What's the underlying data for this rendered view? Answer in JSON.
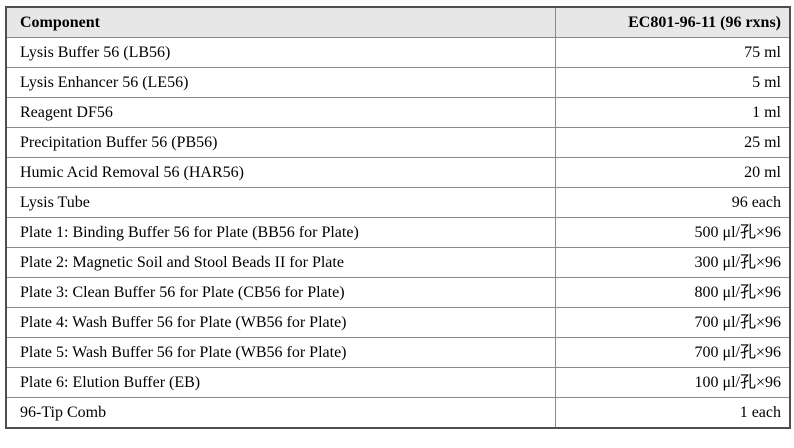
{
  "table": {
    "columns": [
      {
        "label": "Component"
      },
      {
        "label": "EC801-96-11 (96 rxns)"
      }
    ],
    "rows": [
      {
        "component": "Lysis Buffer 56 (LB56)",
        "amount": "75 ml"
      },
      {
        "component": "Lysis Enhancer 56 (LE56)",
        "amount": "5 ml"
      },
      {
        "component": "Reagent DF56",
        "amount": "1 ml"
      },
      {
        "component": "Precipitation Buffer 56 (PB56)",
        "amount": "25 ml"
      },
      {
        "component": "Humic Acid Removal 56 (HAR56)",
        "amount": "20 ml"
      },
      {
        "component": "Lysis Tube",
        "amount": "96 each"
      },
      {
        "component": "Plate 1: Binding Buffer 56 for Plate (BB56 for Plate)",
        "amount": "500 μl/孔×96"
      },
      {
        "component": "Plate 2: Magnetic Soil and Stool Beads II for Plate",
        "amount": "300 μl/孔×96"
      },
      {
        "component": "Plate 3: Clean Buffer 56 for Plate (CB56 for Plate)",
        "amount": "800 μl/孔×96"
      },
      {
        "component": "Plate 4: Wash Buffer 56 for Plate (WB56 for Plate)",
        "amount": "700 μl/孔×96"
      },
      {
        "component": "Plate 5: Wash Buffer 56 for Plate (WB56 for Plate)",
        "amount": "700 μl/孔×96"
      },
      {
        "component": "Plate 6: Elution Buffer (EB)",
        "amount": "100 μl/孔×96"
      },
      {
        "component": "96-Tip Comb",
        "amount": "1 each"
      }
    ],
    "colors": {
      "header_bg": "#e7e7e7",
      "outer_border": "#4f4f4f",
      "inner_border": "#8a8a8a",
      "text": "#000000"
    }
  }
}
